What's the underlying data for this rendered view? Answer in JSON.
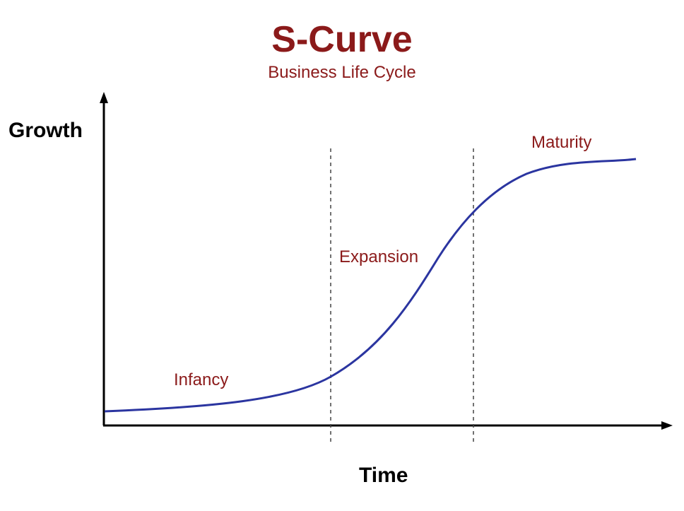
{
  "title": "S-Curve",
  "subtitle": "Business Life Cycle",
  "axes": {
    "y_label": "Growth",
    "x_label": "Time"
  },
  "phases": [
    {
      "label": "Infancy"
    },
    {
      "label": "Expansion"
    },
    {
      "label": "Maturity"
    }
  ],
  "colors": {
    "title": "#8b1a1a",
    "phase_text": "#8b1a1a",
    "curve": "#2b35a0",
    "axis": "#000000",
    "divider": "#444444"
  },
  "elements": {
    "curve": "s-curve",
    "dividers": 2,
    "divider_style": "dashed"
  }
}
